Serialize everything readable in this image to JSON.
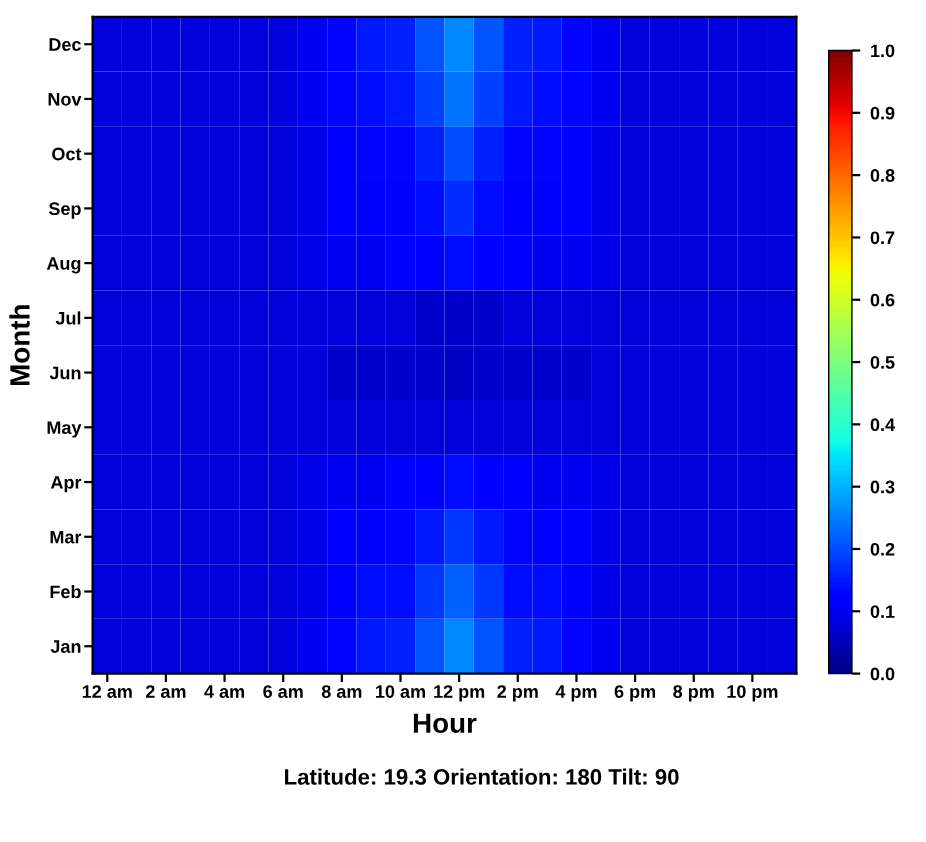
{
  "chart_data": {
    "type": "heatmap",
    "xlabel": "Hour",
    "ylabel": "Month",
    "annotations": [
      "Latitude: 19.3 Orientation: 180 Tilt: 90"
    ],
    "categories": [
      "12 am",
      null,
      "2 am",
      null,
      "4 am",
      null,
      "6 am",
      null,
      "8 am",
      null,
      "10 am",
      null,
      "12 pm",
      null,
      "2 pm",
      null,
      "4 pm",
      null,
      "6 pm",
      null,
      "8 pm",
      null,
      "10 pm",
      null
    ],
    "y_categories": [
      "Dec",
      "Nov",
      "Oct",
      "Sep",
      "Aug",
      "Jul",
      "Jun",
      "May",
      "Apr",
      "Mar",
      "Feb",
      "Jan"
    ],
    "cells": [
      [
        0.08,
        0.08,
        0.08,
        0.08,
        0.08,
        0.08,
        0.08,
        0.1,
        0.13,
        0.15,
        0.16,
        0.21,
        0.26,
        0.21,
        0.16,
        0.15,
        0.13,
        0.1,
        0.08,
        0.08,
        0.08,
        0.08,
        0.08,
        0.08
      ],
      [
        0.08,
        0.08,
        0.08,
        0.08,
        0.08,
        0.08,
        0.08,
        0.1,
        0.13,
        0.14,
        0.15,
        0.19,
        0.24,
        0.19,
        0.15,
        0.14,
        0.13,
        0.1,
        0.08,
        0.08,
        0.08,
        0.08,
        0.08,
        0.08
      ],
      [
        0.08,
        0.08,
        0.08,
        0.08,
        0.08,
        0.08,
        0.08,
        0.09,
        0.12,
        0.13,
        0.13,
        0.16,
        0.2,
        0.16,
        0.13,
        0.13,
        0.12,
        0.09,
        0.08,
        0.08,
        0.08,
        0.08,
        0.08,
        0.08
      ],
      [
        0.08,
        0.08,
        0.08,
        0.08,
        0.08,
        0.08,
        0.08,
        0.09,
        0.11,
        0.12,
        0.12,
        0.14,
        0.17,
        0.14,
        0.12,
        0.12,
        0.11,
        0.09,
        0.08,
        0.08,
        0.08,
        0.08,
        0.08,
        0.08
      ],
      [
        0.08,
        0.08,
        0.08,
        0.08,
        0.08,
        0.08,
        0.08,
        0.09,
        0.1,
        0.1,
        0.11,
        0.12,
        0.14,
        0.12,
        0.11,
        0.1,
        0.1,
        0.09,
        0.08,
        0.08,
        0.08,
        0.08,
        0.08,
        0.08
      ],
      [
        0.08,
        0.08,
        0.08,
        0.08,
        0.08,
        0.08,
        0.08,
        0.08,
        0.08,
        0.08,
        0.08,
        0.07,
        0.07,
        0.07,
        0.08,
        0.08,
        0.08,
        0.08,
        0.08,
        0.08,
        0.08,
        0.08,
        0.08,
        0.08
      ],
      [
        0.08,
        0.08,
        0.08,
        0.08,
        0.08,
        0.08,
        0.08,
        0.08,
        0.07,
        0.07,
        0.07,
        0.07,
        0.06,
        0.07,
        0.07,
        0.07,
        0.07,
        0.08,
        0.08,
        0.08,
        0.08,
        0.08,
        0.08,
        0.08
      ],
      [
        0.08,
        0.08,
        0.08,
        0.08,
        0.08,
        0.08,
        0.08,
        0.08,
        0.08,
        0.08,
        0.08,
        0.08,
        0.08,
        0.08,
        0.08,
        0.08,
        0.08,
        0.08,
        0.08,
        0.08,
        0.08,
        0.08,
        0.08,
        0.08
      ],
      [
        0.08,
        0.08,
        0.08,
        0.08,
        0.08,
        0.08,
        0.08,
        0.09,
        0.1,
        0.1,
        0.11,
        0.12,
        0.14,
        0.12,
        0.11,
        0.1,
        0.1,
        0.09,
        0.08,
        0.08,
        0.08,
        0.08,
        0.08,
        0.08
      ],
      [
        0.08,
        0.08,
        0.08,
        0.08,
        0.08,
        0.08,
        0.08,
        0.09,
        0.11,
        0.12,
        0.13,
        0.15,
        0.18,
        0.15,
        0.13,
        0.12,
        0.11,
        0.09,
        0.08,
        0.08,
        0.08,
        0.08,
        0.08,
        0.08
      ],
      [
        0.08,
        0.08,
        0.08,
        0.08,
        0.08,
        0.08,
        0.08,
        0.09,
        0.12,
        0.14,
        0.14,
        0.18,
        0.22,
        0.18,
        0.14,
        0.14,
        0.12,
        0.09,
        0.08,
        0.08,
        0.08,
        0.08,
        0.08,
        0.08
      ],
      [
        0.08,
        0.08,
        0.08,
        0.08,
        0.08,
        0.08,
        0.08,
        0.1,
        0.13,
        0.15,
        0.16,
        0.21,
        0.26,
        0.21,
        0.16,
        0.15,
        0.13,
        0.1,
        0.08,
        0.08,
        0.08,
        0.08,
        0.08,
        0.08
      ]
    ],
    "clim": [
      0,
      1
    ],
    "cticks": [
      {
        "value": 0,
        "label": "0.0"
      },
      {
        "value": 0.1,
        "label": "0.1"
      },
      {
        "value": 0.2,
        "label": "0.2"
      },
      {
        "value": 0.3,
        "label": "0.3"
      },
      {
        "value": 0.4,
        "label": "0.4"
      },
      {
        "value": 0.5,
        "label": "0.5"
      },
      {
        "value": 0.6,
        "label": "0.6"
      },
      {
        "value": 0.7,
        "label": "0.7"
      },
      {
        "value": 0.8,
        "label": "0.8"
      },
      {
        "value": 0.9,
        "label": "0.9"
      },
      {
        "value": 1,
        "label": "1.0"
      }
    ]
  }
}
